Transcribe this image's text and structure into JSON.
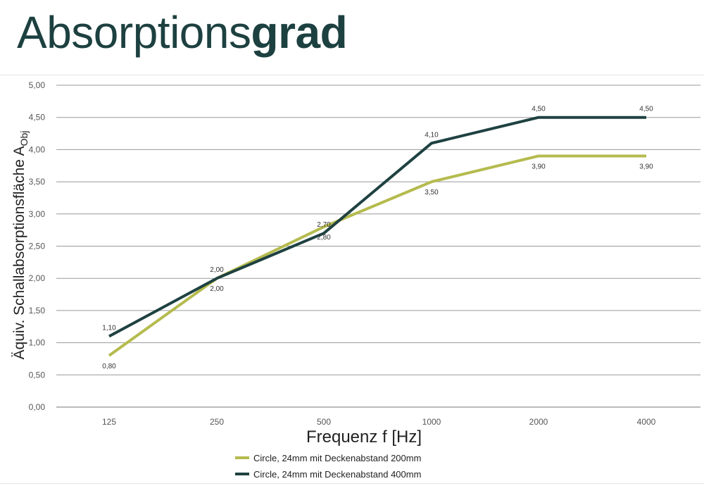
{
  "title": {
    "regular": "Absorptions",
    "bold": "grad"
  },
  "chart_data": {
    "type": "line",
    "categories": [
      "125",
      "250",
      "500",
      "1000",
      "2000",
      "4000"
    ],
    "xlabel": "Frequenz f [Hz]",
    "ylabel": "Äquiv. Schallabsorptionsfläche A",
    "ylabel_subscript": "Obj",
    "ylim": [
      0,
      5
    ],
    "yticks": [
      "0,00",
      "0,50",
      "1,00",
      "1,50",
      "2,00",
      "2,50",
      "3,00",
      "3,50",
      "4,00",
      "4,50",
      "5,00"
    ],
    "grid": "horizontal",
    "legend_position": "bottom-center",
    "series": [
      {
        "name": "Circle, 24mm mit Deckenabstand 200mm",
        "color": "#b5bb4e",
        "values": [
          0.8,
          2.0,
          2.8,
          3.5,
          3.9,
          3.9
        ],
        "labels": [
          "0,80",
          "2,00",
          "2,80",
          "3,50",
          "3,90",
          "3,90"
        ]
      },
      {
        "name": "Circle, 24mm mit Deckenabstand 400mm",
        "color": "#1f4141",
        "values": [
          1.1,
          2.0,
          2.7,
          4.1,
          4.5,
          4.5
        ],
        "labels": [
          "1,10",
          "2,00",
          "2,70",
          "4,10",
          "4,50",
          "4,50"
        ]
      }
    ]
  }
}
